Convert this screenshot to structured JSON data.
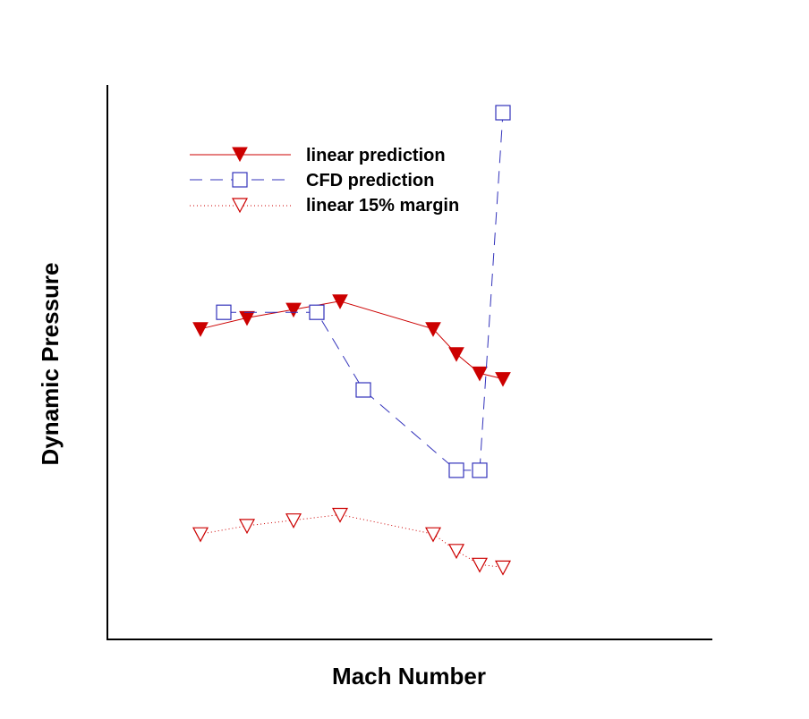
{
  "chart_data": {
    "type": "line",
    "xlabel": "Mach Number",
    "ylabel": "Dynamic Pressure",
    "xlim": [
      0,
      13
    ],
    "ylim": [
      0,
      100
    ],
    "grid": false,
    "legend_placement": "top-left",
    "series": [
      {
        "name": "linear prediction",
        "color": "#cc0000",
        "line_style": "solid",
        "marker": "filled-down-triangle",
        "x": [
          2,
          3,
          4,
          5,
          7,
          7.5,
          8,
          8.5
        ],
        "y": [
          56,
          58,
          59.5,
          61,
          56,
          51.5,
          48,
          47
        ]
      },
      {
        "name": "CFD prediction",
        "color": "#3333bb",
        "line_style": "dashed",
        "marker": "open-square",
        "x": [
          2.5,
          4.5,
          5.5,
          7.5,
          8,
          8.5
        ],
        "y": [
          59,
          59,
          45,
          30.5,
          30.5,
          95
        ]
      },
      {
        "name": "linear 15% margin",
        "color": "#cc0000",
        "line_style": "dotted",
        "marker": "open-down-triangle",
        "x": [
          2,
          3,
          4,
          5,
          7,
          7.5,
          8,
          8.5
        ],
        "y": [
          19,
          20.5,
          21.5,
          22.5,
          19,
          16,
          13.5,
          13
        ]
      }
    ]
  }
}
